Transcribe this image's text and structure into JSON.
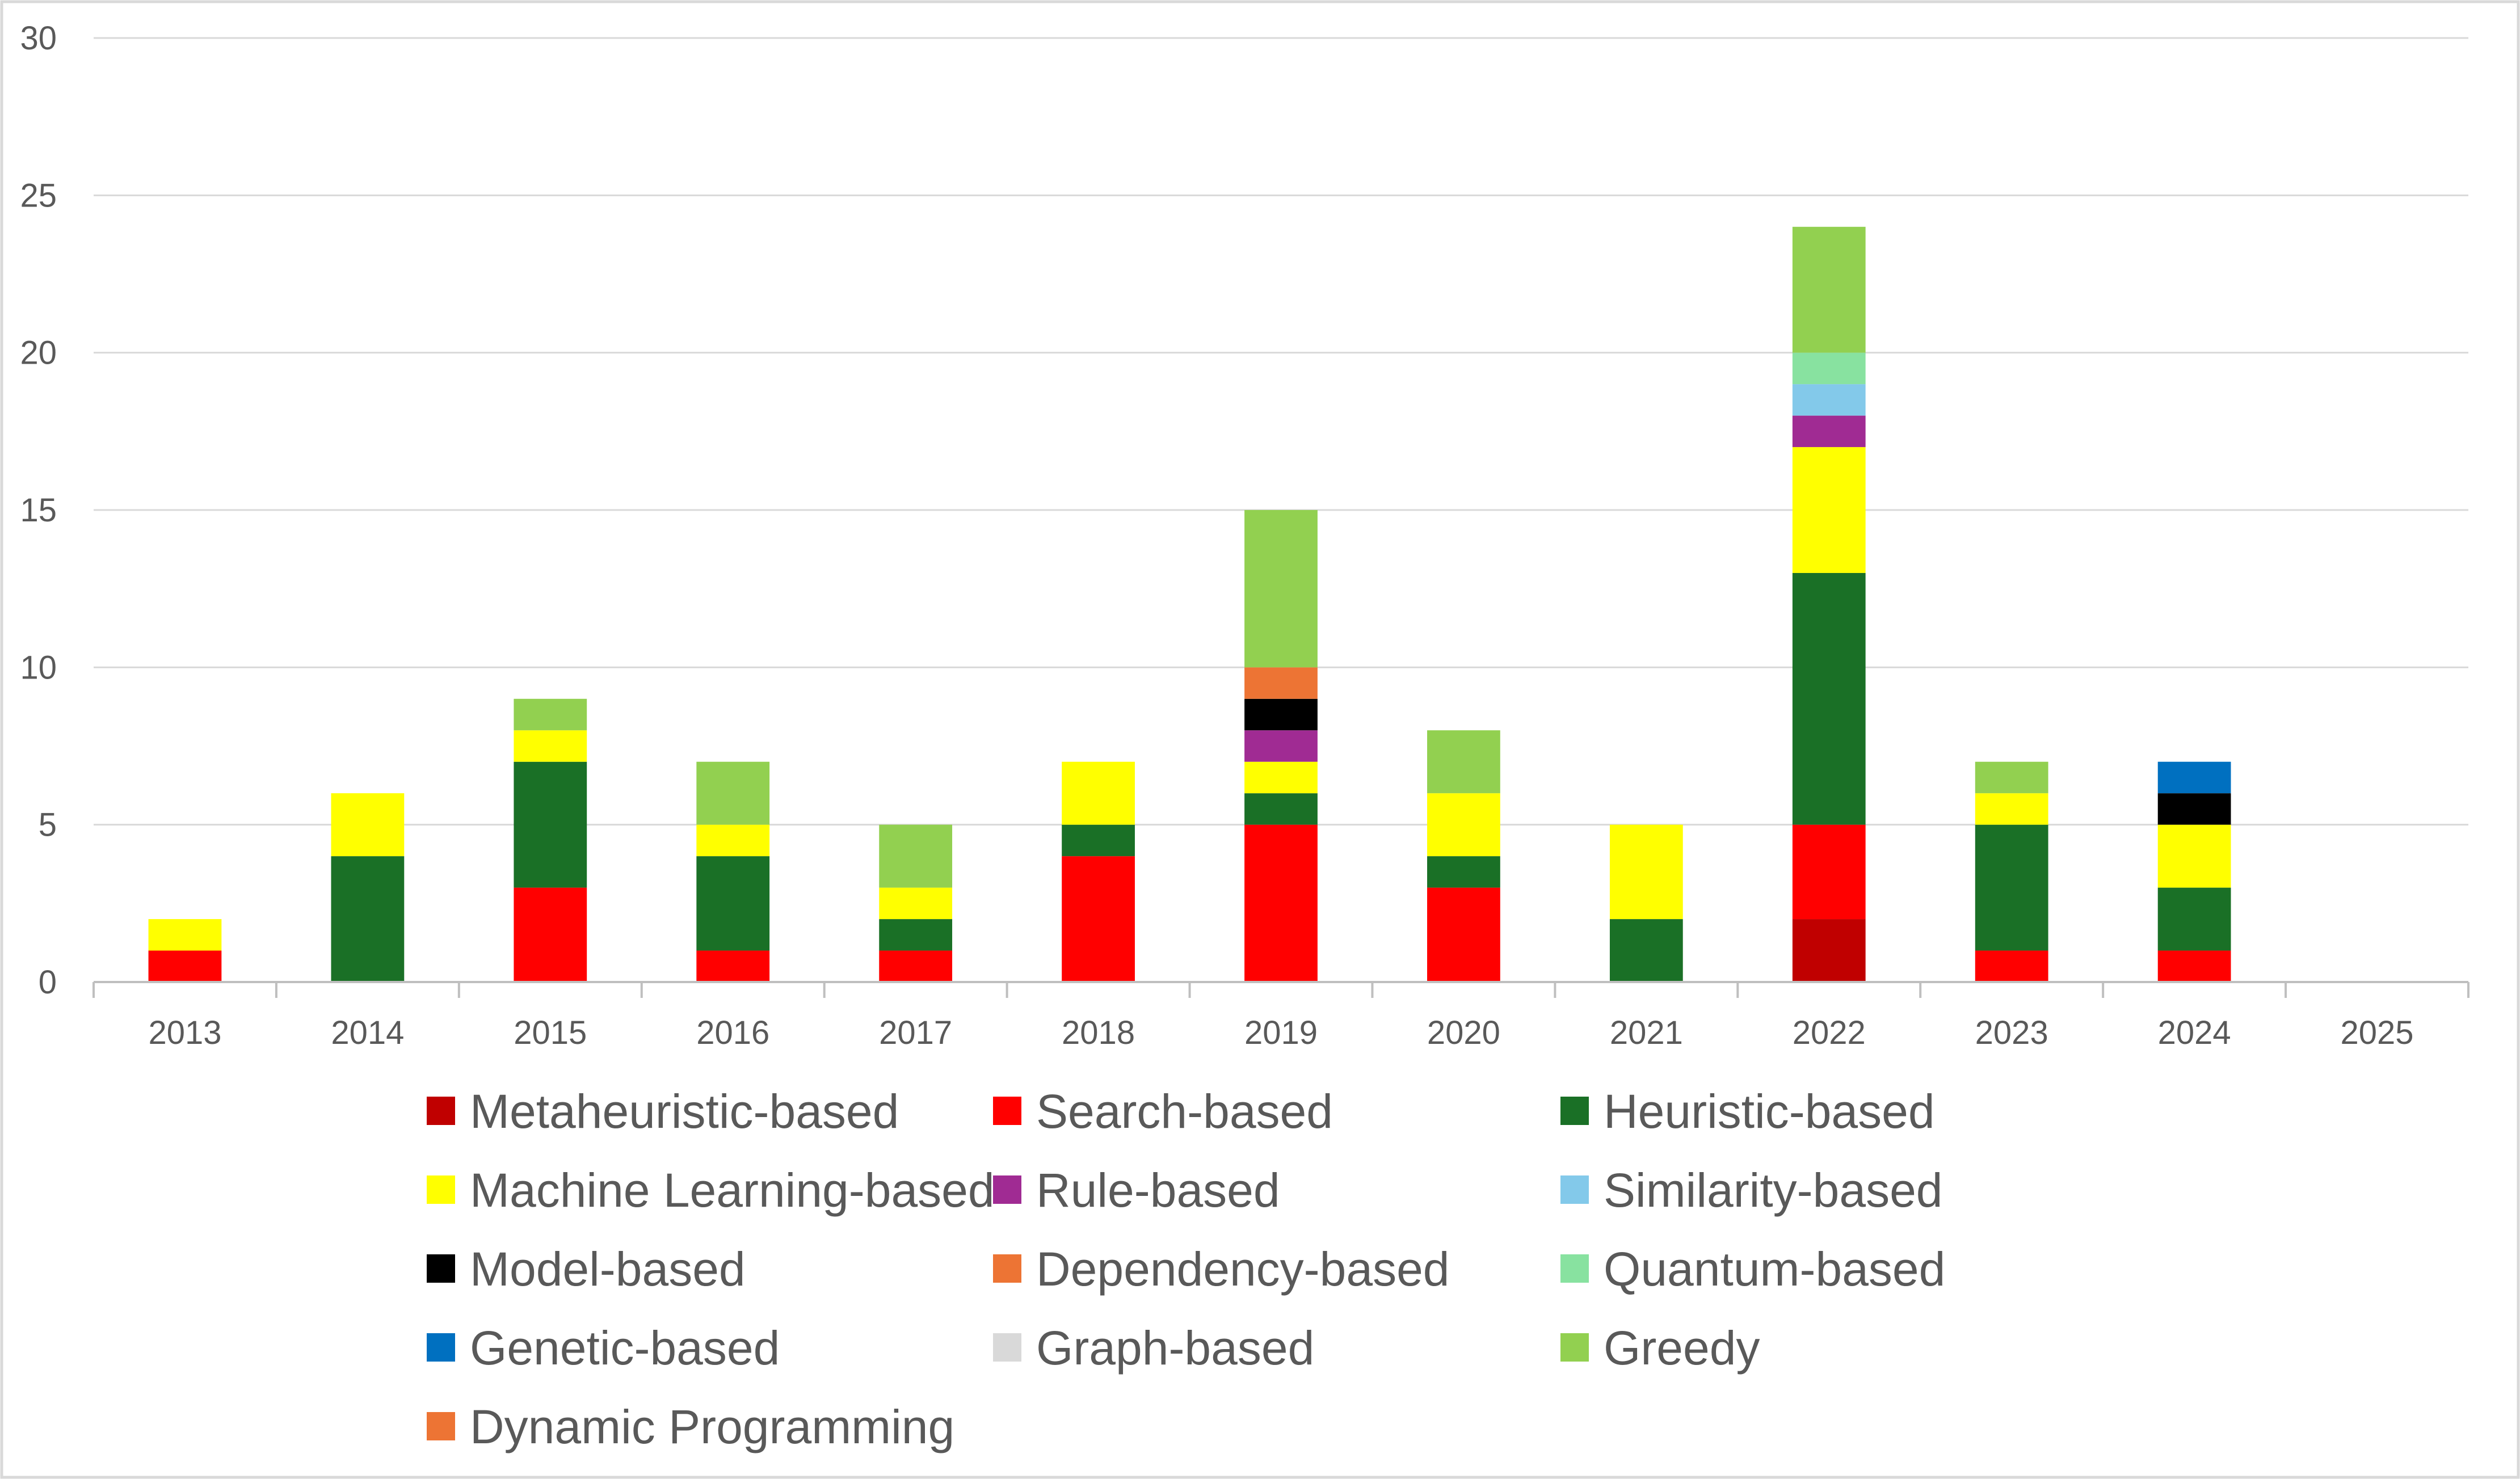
{
  "chart_data": {
    "type": "bar",
    "stacked": true,
    "title": "",
    "xlabel": "",
    "ylabel": "",
    "ylim": [
      0,
      30
    ],
    "yticks": [
      0,
      5,
      10,
      15,
      20,
      25,
      30
    ],
    "grid": true,
    "legend_position": "bottom",
    "categories": [
      "2013",
      "2014",
      "2015",
      "2016",
      "2017",
      "2018",
      "2019",
      "2020",
      "2021",
      "2022",
      "2023",
      "2024",
      "2025"
    ],
    "series": [
      {
        "name": "Metaheuristic-based",
        "color": "#C00000",
        "values": [
          0,
          0,
          0,
          0,
          0,
          0,
          0,
          0,
          0,
          2,
          0,
          0,
          0
        ]
      },
      {
        "name": "Search-based",
        "color": "#FF0000",
        "values": [
          1,
          0,
          3,
          1,
          1,
          4,
          5,
          3,
          0,
          3,
          1,
          1,
          0
        ]
      },
      {
        "name": "Heuristic-based",
        "color": "#1A7026",
        "values": [
          0,
          4,
          4,
          3,
          1,
          1,
          1,
          1,
          2,
          8,
          4,
          2,
          0
        ]
      },
      {
        "name": "Machine Learning-based",
        "color": "#FFFF00",
        "values": [
          1,
          2,
          1,
          1,
          1,
          2,
          1,
          2,
          3,
          4,
          1,
          2,
          0
        ]
      },
      {
        "name": "Rule-based",
        "color": "#A02B93",
        "values": [
          0,
          0,
          0,
          0,
          0,
          0,
          1,
          0,
          0,
          1,
          0,
          0,
          0
        ]
      },
      {
        "name": "Similarity-based",
        "color": "#83C9EA",
        "values": [
          0,
          0,
          0,
          0,
          0,
          0,
          0,
          0,
          0,
          1,
          0,
          0,
          0
        ]
      },
      {
        "name": "Model-based",
        "color": "#000000",
        "values": [
          0,
          0,
          0,
          0,
          0,
          0,
          1,
          0,
          0,
          0,
          0,
          1,
          0
        ]
      },
      {
        "name": "Dependency-based",
        "color": "#ED7434",
        "values": [
          0,
          0,
          0,
          0,
          0,
          0,
          1,
          0,
          0,
          0,
          0,
          0,
          0
        ]
      },
      {
        "name": "Quantum-based",
        "color": "#88E2A0",
        "values": [
          0,
          0,
          0,
          0,
          0,
          0,
          0,
          0,
          0,
          1,
          0,
          0,
          0
        ]
      },
      {
        "name": "Genetic-based",
        "color": "#0070C0",
        "values": [
          0,
          0,
          0,
          0,
          0,
          0,
          0,
          0,
          0,
          0,
          0,
          1,
          0
        ]
      },
      {
        "name": "Graph-based",
        "color": "#D9D9D9",
        "values": [
          0,
          0,
          0,
          0,
          0,
          0,
          0,
          0,
          0,
          0,
          0,
          0,
          0
        ]
      },
      {
        "name": "Greedy",
        "color": "#92D050",
        "values": [
          0,
          0,
          1,
          2,
          2,
          0,
          5,
          2,
          0,
          4,
          1,
          0,
          0
        ]
      },
      {
        "name": "Dynamic Programming",
        "color": "#ED7434",
        "values": [
          0,
          0,
          0,
          0,
          0,
          0,
          0,
          0,
          0,
          0,
          0,
          0,
          0
        ]
      }
    ]
  }
}
